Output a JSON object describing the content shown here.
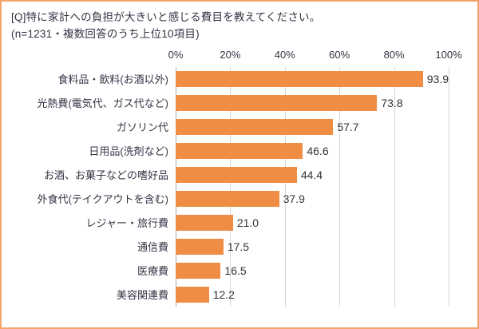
{
  "header": {
    "title_line1": "[Q]特に家計への負担が大きいと感じる費目を教えてください。",
    "title_line2": "(n=1231・複数回答のうち上位10項目)"
  },
  "chart_data": {
    "type": "bar",
    "orientation": "horizontal",
    "title": "[Q]特に家計への負担が大きいと感じる費目を教えてください。",
    "subtitle": "(n=1231・複数回答のうち上位10項目)",
    "categories": [
      "食料品・飲料(お酒以外)",
      "光熱費(電気代、ガス代など)",
      "ガソリン代",
      "日用品(洗剤など)",
      "お酒、お菓子などの嗜好品",
      "外食代(テイクアウトを含む)",
      "レジャー・旅行費",
      "通信費",
      "医療費",
      "美容関連費"
    ],
    "values": [
      93.9,
      73.8,
      57.7,
      46.6,
      44.4,
      37.9,
      21.0,
      17.5,
      16.5,
      12.2
    ],
    "value_labels": [
      "93.9",
      "73.8",
      "57.7",
      "46.6",
      "44.4",
      "37.9",
      "21.0",
      "17.5",
      "16.5",
      "12.2"
    ],
    "xlabel": "",
    "ylabel": "",
    "xlim": [
      0,
      100
    ],
    "tick_labels": [
      "0%",
      "20%",
      "40%",
      "60%",
      "80%",
      "100%"
    ],
    "tick_values": [
      0,
      20,
      40,
      60,
      80,
      100
    ],
    "grid": true,
    "legend": "none",
    "colors": {
      "bar": "#ef8d44",
      "frame_border": "#f2a469",
      "grid": "#d6d6d6",
      "axis": "#a8a8a8",
      "text": "#333344",
      "value_text": "#333333"
    }
  }
}
